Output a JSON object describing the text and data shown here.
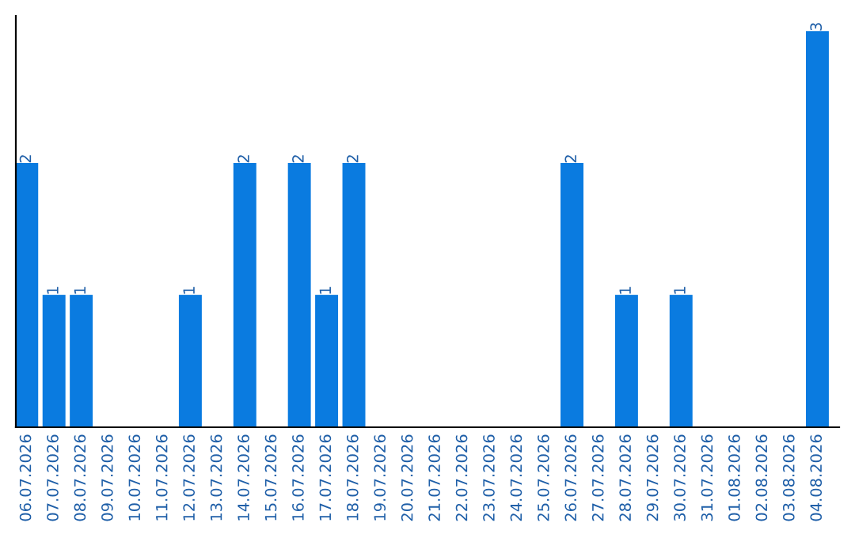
{
  "chart_data": {
    "type": "bar",
    "categories": [
      "06.07.2026",
      "07.07.2026",
      "08.07.2026",
      "09.07.2026",
      "10.07.2026",
      "11.07.2026",
      "12.07.2026",
      "13.07.2026",
      "14.07.2026",
      "15.07.2026",
      "16.07.2026",
      "17.07.2026",
      "18.07.2026",
      "19.07.2026",
      "20.07.2026",
      "21.07.2026",
      "22.07.2026",
      "23.07.2026",
      "24.07.2026",
      "25.07.2026",
      "26.07.2026",
      "27.07.2026",
      "28.07.2026",
      "29.07.2026",
      "30.07.2026",
      "31.07.2026",
      "01.08.2026",
      "02.08.2026",
      "03.08.2026",
      "04.08.2026"
    ],
    "values": [
      2,
      1,
      1,
      0,
      0,
      0,
      1,
      0,
      2,
      0,
      2,
      1,
      2,
      0,
      0,
      0,
      0,
      0,
      0,
      0,
      2,
      0,
      1,
      0,
      1,
      0,
      0,
      0,
      0,
      3
    ],
    "value_labels": [
      "2",
      "1",
      "1",
      null,
      null,
      null,
      "1",
      null,
      "2",
      null,
      "2",
      "1",
      "2",
      null,
      null,
      null,
      null,
      null,
      null,
      null,
      "2",
      null,
      "1",
      null,
      "1",
      null,
      null,
      null,
      null,
      "3"
    ],
    "color": "#0a7be0",
    "grid": false,
    "legend": false
  }
}
